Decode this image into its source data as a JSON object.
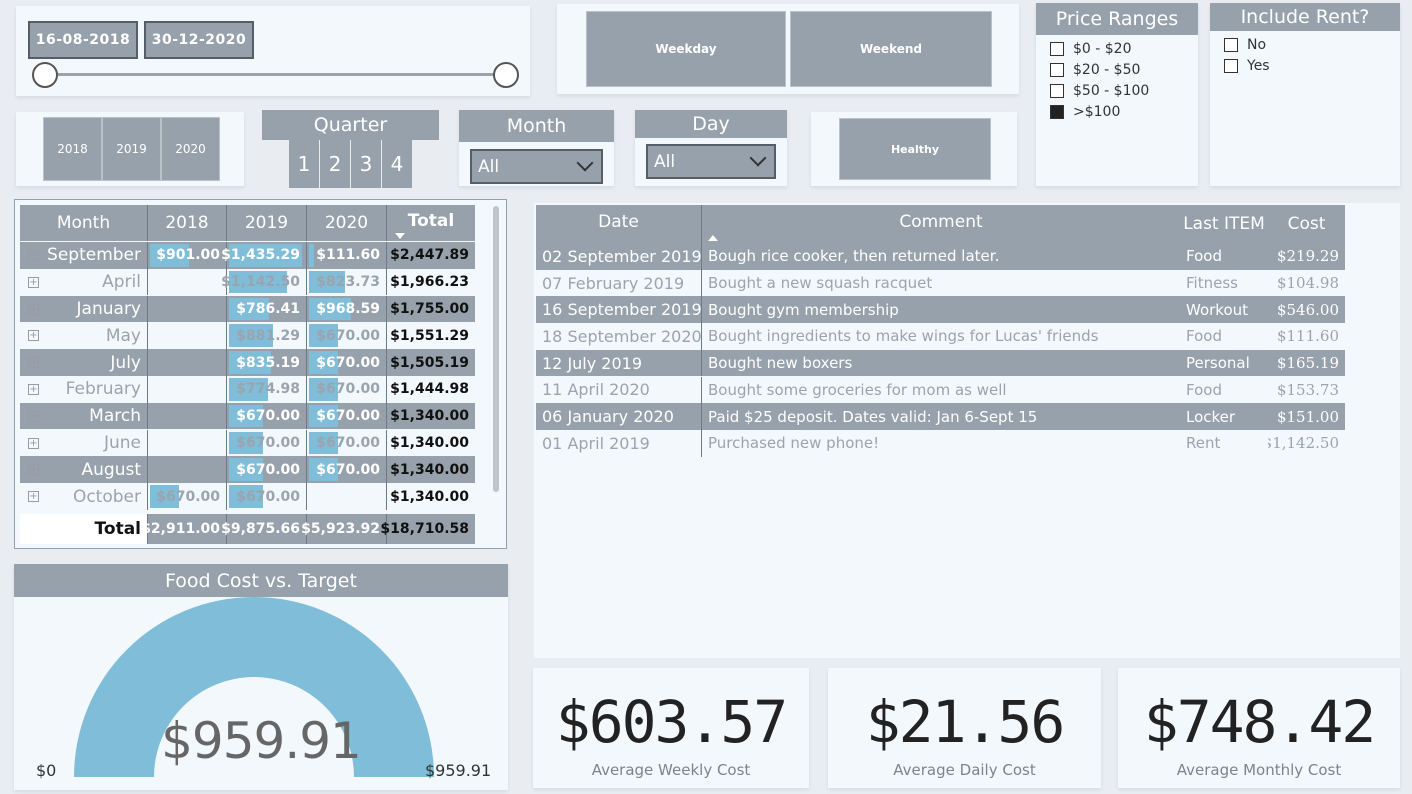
{
  "date_range": {
    "start": "16-08-2018",
    "end": "30-12-2020",
    "slider_start": 0,
    "slider_end": 1
  },
  "day_type": {
    "buttons": [
      "Weekday",
      "Weekend"
    ]
  },
  "price_ranges": {
    "title": "Price Ranges",
    "options": [
      {
        "label": "$0 - $20",
        "checked": false
      },
      {
        "label": "$20 - $50",
        "checked": false
      },
      {
        "label": "$50 - $100",
        "checked": false
      },
      {
        "label": ">$100",
        "checked": true
      }
    ]
  },
  "include_rent": {
    "title": "Include Rent?",
    "options": [
      {
        "label": "No",
        "checked": false
      },
      {
        "label": "Yes",
        "checked": false
      }
    ]
  },
  "years": [
    "2018",
    "2019",
    "2020"
  ],
  "quarter": {
    "title": "Quarter",
    "options": [
      "1",
      "2",
      "3",
      "4"
    ]
  },
  "month_filter": {
    "title": "Month",
    "value": "All"
  },
  "day_filter": {
    "title": "Day",
    "value": "All"
  },
  "healthy_button": "Healthy",
  "matrix": {
    "headers": [
      "Month",
      "2018",
      "2019",
      "2020",
      "Total"
    ],
    "rows": [
      {
        "month": "September",
        "y2018": "$901.00",
        "y2019": "$1,435.29",
        "y2020": "$111.60",
        "total": "$2,447.89",
        "bar2018": 0.54,
        "bar2019": 1.0,
        "bar2020": 0.07
      },
      {
        "month": "April",
        "y2018": "",
        "y2019": "$1,142.50",
        "y2020": "$823.73",
        "total": "$1,966.23",
        "bar2018": 0,
        "bar2019": 0.8,
        "bar2020": 0.49
      },
      {
        "month": "January",
        "y2018": "",
        "y2019": "$786.41",
        "y2020": "$968.59",
        "total": "$1,755.00",
        "bar2018": 0,
        "bar2019": 0.55,
        "bar2020": 0.58
      },
      {
        "month": "May",
        "y2018": "",
        "y2019": "$881.29",
        "y2020": "$670.00",
        "total": "$1,551.29",
        "bar2018": 0,
        "bar2019": 0.61,
        "bar2020": 0.4
      },
      {
        "month": "July",
        "y2018": "",
        "y2019": "$835.19",
        "y2020": "$670.00",
        "total": "$1,505.19",
        "bar2018": 0,
        "bar2019": 0.58,
        "bar2020": 0.4
      },
      {
        "month": "February",
        "y2018": "",
        "y2019": "$774.98",
        "y2020": "$670.00",
        "total": "$1,444.98",
        "bar2018": 0,
        "bar2019": 0.54,
        "bar2020": 0.4
      },
      {
        "month": "March",
        "y2018": "",
        "y2019": "$670.00",
        "y2020": "$670.00",
        "total": "$1,340.00",
        "bar2018": 0,
        "bar2019": 0.47,
        "bar2020": 0.4
      },
      {
        "month": "June",
        "y2018": "",
        "y2019": "$670.00",
        "y2020": "$670.00",
        "total": "$1,340.00",
        "bar2018": 0,
        "bar2019": 0.47,
        "bar2020": 0.4
      },
      {
        "month": "August",
        "y2018": "",
        "y2019": "$670.00",
        "y2020": "$670.00",
        "total": "$1,340.00",
        "bar2018": 0,
        "bar2019": 0.47,
        "bar2020": 0.4
      },
      {
        "month": "October",
        "y2018": "$670.00",
        "y2019": "$670.00",
        "y2020": "",
        "total": "$1,340.00",
        "bar2018": 0.4,
        "bar2019": 0.47,
        "bar2020": 0
      }
    ],
    "total_row": {
      "label": "Total",
      "y2018": "$2,911.00",
      "y2019": "$9,875.66",
      "y2020": "$5,923.92",
      "total": "$18,710.58"
    }
  },
  "details": {
    "headers": [
      "Date",
      "Comment",
      "Last ITEM",
      "Cost"
    ],
    "rows": [
      {
        "date": "02 September 2019",
        "comment": "Bough rice cooker, then returned later.",
        "item": "Food",
        "cost": "$219.29"
      },
      {
        "date": "07 February 2019",
        "comment": "Bought a new squash racquet",
        "item": "Fitness",
        "cost": "$104.98"
      },
      {
        "date": "16 September 2019",
        "comment": "Bought gym membership",
        "item": "Workout",
        "cost": "$546.00"
      },
      {
        "date": "18 September 2020",
        "comment": "Bought ingredients to make wings for Lucas' friends",
        "item": "Food",
        "cost": "$111.60"
      },
      {
        "date": "12 July 2019",
        "comment": "Bought new boxers",
        "item": "Personal",
        "cost": "$165.19"
      },
      {
        "date": "11 April 2020",
        "comment": "Bought some groceries for mom as well",
        "item": "Food",
        "cost": "$153.73"
      },
      {
        "date": "06 January 2020",
        "comment": "Paid $25 deposit. Dates valid: Jan 6-Sept 15",
        "item": "Locker",
        "cost": "$151.00"
      },
      {
        "date": "01 April 2019",
        "comment": "Purchased new phone!",
        "item": "Rent",
        "cost": "$1,142.50"
      }
    ]
  },
  "gauge": {
    "title": "Food Cost vs. Target",
    "value": "$959.91",
    "min_label": "$0",
    "max_label": "$959.91",
    "fill_fraction": 1.0,
    "color": "#7fbdd8"
  },
  "kpis": [
    {
      "value": "$603.57",
      "label": "Average Weekly Cost"
    },
    {
      "value": "$21.56",
      "label": "Average Daily Cost"
    },
    {
      "value": "$748.42",
      "label": "Average Monthly Cost"
    }
  ],
  "colors": {
    "slate": "#97a1ab",
    "accent_blue": "#7fbdd8",
    "background": "#f3f8fd"
  }
}
